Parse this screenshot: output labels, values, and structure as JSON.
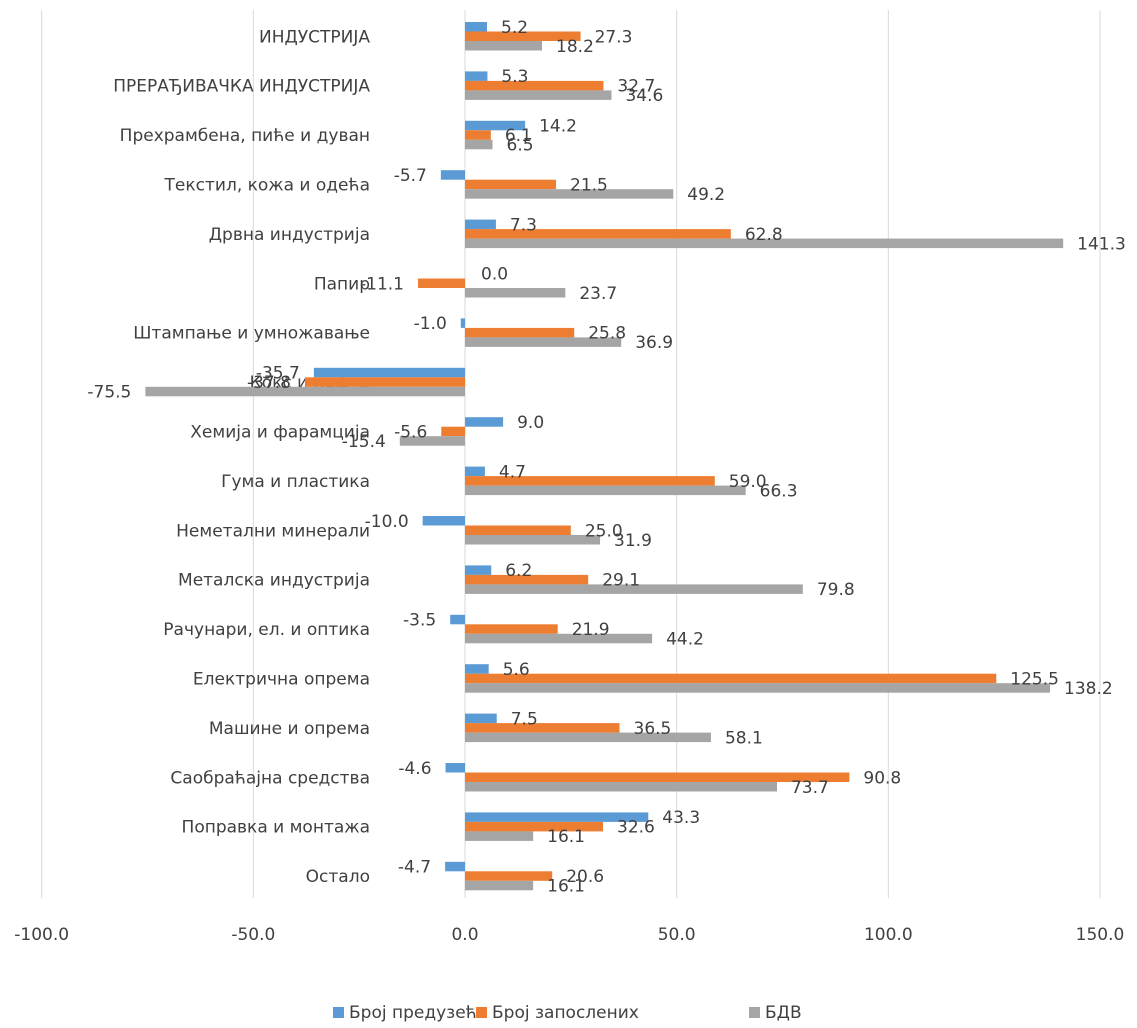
{
  "chart_data": {
    "type": "bar",
    "orientation": "horizontal",
    "categories": [
      "ИНДУСТРИЈА",
      "ПРЕРАЂИВАЧКА ИНДУСТРИЈА",
      "Прехрамбена, пиће и дуван",
      "Текстил, кожа и одећа",
      "Дрвна индустрија",
      "Папир",
      "Штампање и умножавање",
      "Кокс и нафта",
      "Хемија и фарамција",
      "Гума и пластика",
      "Неметални минерали",
      "Металска индустрија",
      "Рачунари, ел. и оптика",
      "Електрична опрема",
      "Машине и опрема",
      "Саобраћајна средства",
      "Поправка и монтажа",
      "Остало"
    ],
    "series": [
      {
        "name": "Број предузећа",
        "color": "#5b9bd5",
        "values": [
          5.2,
          5.3,
          14.2,
          -5.7,
          7.3,
          null,
          -1.0,
          -35.7,
          9.0,
          4.7,
          -10.0,
          6.2,
          -3.5,
          5.6,
          7.5,
          -4.6,
          43.3,
          -4.7
        ],
        "labels": [
          "5.2",
          "5.3",
          "14.2",
          "-5.7",
          "7.3",
          "",
          "-1.0",
          "-35.7",
          "9.0",
          "4.7",
          "-10.0",
          "6.2",
          "-3.5",
          "5.6",
          "7.5",
          "-4.6",
          "43.3",
          "-4.7"
        ]
      },
      {
        "name": "Број запослених",
        "color": "#ed7d31",
        "values": [
          27.3,
          32.7,
          6.1,
          21.5,
          62.8,
          -11.1,
          25.8,
          -37.8,
          -5.6,
          59.0,
          25.0,
          29.1,
          21.9,
          125.5,
          36.5,
          90.8,
          32.6,
          20.6
        ],
        "labels": [
          "27.3",
          "32.7",
          "6.1",
          "21.5",
          "62.8",
          "-11.1",
          "25.8",
          "-37.8",
          "-5.6",
          "59.0",
          "25.0",
          "29.1",
          "21.9",
          "125.5",
          "36.5",
          "90.8",
          "32.6",
          "20.6"
        ]
      },
      {
        "name": "БДВ",
        "color": "#a5a5a5",
        "values": [
          18.2,
          34.6,
          6.5,
          49.2,
          141.3,
          23.7,
          36.9,
          -75.5,
          -15.4,
          66.3,
          31.9,
          79.8,
          44.2,
          138.2,
          58.1,
          73.7,
          16.1,
          16.1
        ],
        "labels": [
          "18.2",
          "34.6",
          "6.5",
          "49.2",
          "141.3",
          "23.7",
          "36.9",
          "-75.5",
          "-15.4",
          "66.3",
          "31.9",
          "79.8",
          "44.2",
          "138.2",
          "58.1",
          "73.7",
          "16.1",
          "16.1"
        ]
      }
    ],
    "paper_label": "0.0",
    "xlim": [
      -100,
      150
    ],
    "xticks": [
      -100,
      -50,
      0,
      50,
      100,
      150
    ],
    "xtick_labels": [
      "-100.0",
      "-50.0",
      "0.0",
      "50.0",
      "100.0",
      "150.0"
    ],
    "grid": "vertical",
    "legend_position": "bottom"
  }
}
